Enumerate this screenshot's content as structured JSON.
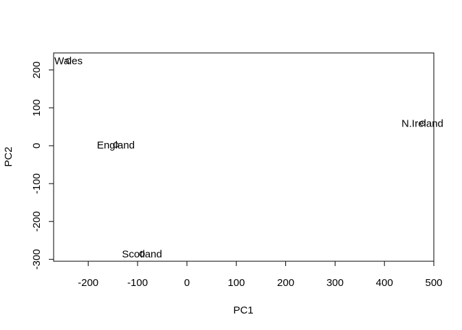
{
  "chart_data": {
    "type": "scatter",
    "title": "",
    "xlabel": "PC1",
    "ylabel": "PC2",
    "xlim": [
      -270,
      500
    ],
    "ylim": [
      -305,
      245
    ],
    "xticks": [
      -200,
      -100,
      0,
      100,
      200,
      300,
      400,
      500
    ],
    "yticks": [
      -300,
      -200,
      -100,
      0,
      100,
      200
    ],
    "grid": false,
    "points": [
      {
        "label": "England",
        "x": -144,
        "y": 2
      },
      {
        "label": "Wales",
        "x": -240,
        "y": 224
      },
      {
        "label": "Scotland",
        "x": -91,
        "y": -286
      },
      {
        "label": "N.Ireland",
        "x": 477,
        "y": 59
      }
    ]
  }
}
